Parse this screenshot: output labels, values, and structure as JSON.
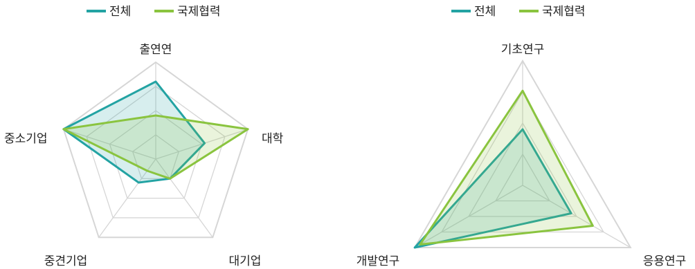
{
  "colors": {
    "total": "#23a3a3",
    "intl": "#8ac43f",
    "grid": "#d6d6d6",
    "text": "#222222"
  },
  "charts": [
    {
      "legend": [
        "전체",
        "국제협력"
      ],
      "axes": [
        "출연연",
        "대학",
        "대기업",
        "중견기업",
        "중소기업"
      ]
    },
    {
      "legend": [
        "전체",
        "국제협력"
      ],
      "axes": [
        "기초연구",
        "응용연구",
        "개발연구"
      ]
    }
  ],
  "chart_data": [
    {
      "type": "radar",
      "categories": [
        "출연연",
        "대학",
        "대기업",
        "중견기업",
        "중소기업"
      ],
      "series": [
        {
          "name": "전체",
          "values": [
            0.8,
            0.53,
            0.25,
            0.3,
            1.0
          ]
        },
        {
          "name": "국제협력",
          "values": [
            0.45,
            1.0,
            0.25,
            0.15,
            1.0
          ]
        }
      ],
      "rlim": [
        0,
        1
      ],
      "grid_levels": 4,
      "legend_position": "top"
    },
    {
      "type": "radar",
      "categories": [
        "기초연구",
        "응용연구",
        "개발연구"
      ],
      "series": [
        {
          "name": "전체",
          "values": [
            0.45,
            0.45,
            1.0
          ]
        },
        {
          "name": "국제협력",
          "values": [
            0.76,
            0.65,
            0.95
          ]
        }
      ],
      "rlim": [
        0,
        1
      ],
      "grid_levels": 4,
      "legend_position": "top"
    }
  ]
}
